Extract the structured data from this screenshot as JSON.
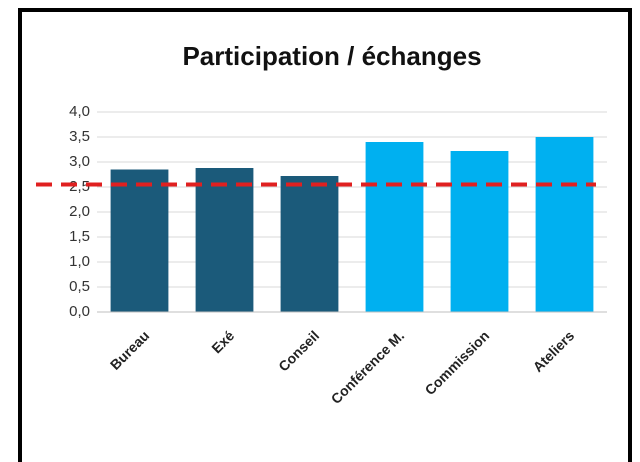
{
  "chart_data": {
    "type": "bar",
    "title": "Participation / échanges",
    "categories": [
      "Bureau",
      "Exé",
      "Conseil",
      "Conférence M.",
      "Commission",
      "Ateliers"
    ],
    "values": [
      2.85,
      2.88,
      2.72,
      3.4,
      3.22,
      3.5
    ],
    "colors": [
      "#1b5a7a",
      "#1b5a7a",
      "#1b5a7a",
      "#00b0f0",
      "#00b0f0",
      "#00b0f0"
    ],
    "ylim": [
      0,
      4
    ],
    "yticks": [
      {
        "value": 0,
        "label": "0,0"
      },
      {
        "value": 0.5,
        "label": "0,5"
      },
      {
        "value": 1,
        "label": "1,0"
      },
      {
        "value": 1.5,
        "label": "1,5"
      },
      {
        "value": 2,
        "label": "2,0"
      },
      {
        "value": 2.5,
        "label": "2,5"
      },
      {
        "value": 3,
        "label": "3,0"
      },
      {
        "value": 3.5,
        "label": "3,5"
      },
      {
        "value": 4,
        "label": "4,0"
      }
    ],
    "grid": true,
    "reference_line": {
      "value": 2.55,
      "color": "#e02020"
    }
  }
}
